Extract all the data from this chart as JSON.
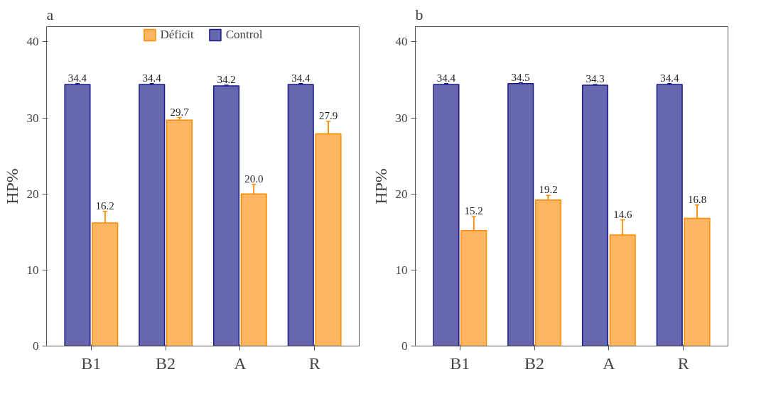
{
  "chart_data": [
    {
      "type": "bar",
      "title": "a",
      "ylabel": "HP%",
      "categories": [
        "B1",
        "B2",
        "A",
        "R"
      ],
      "ylim": [
        0,
        42
      ],
      "yticks": [
        0,
        10,
        20,
        30,
        40
      ],
      "grid": false,
      "legend": "top",
      "series": [
        {
          "name": "Déficit",
          "color": "#ffb662",
          "values": [
            16.2,
            29.7,
            20.0,
            27.9
          ],
          "value_labels": [
            "16.2",
            "29.7",
            "20.0",
            "27.9"
          ],
          "errors": [
            1.5,
            0.35,
            1.25,
            1.65
          ]
        },
        {
          "name": "Control",
          "color": "#6667ae",
          "values": [
            34.4,
            34.4,
            34.2,
            34.4
          ],
          "value_labels": [
            "34.4",
            "34.4",
            "34.2",
            "34.4"
          ],
          "errors": [
            0.1,
            0.1,
            0.1,
            0.1
          ]
        }
      ]
    },
    {
      "type": "bar",
      "title": "b",
      "ylabel": "HP%",
      "categories": [
        "B1",
        "B2",
        "A",
        "R"
      ],
      "ylim": [
        0,
        42
      ],
      "yticks": [
        0,
        10,
        20,
        30,
        40
      ],
      "grid": false,
      "series": [
        {
          "color": "#ffb662",
          "values": [
            15.2,
            19.2,
            14.6,
            16.8
          ],
          "value_labels": [
            "15.2",
            "19.2",
            "14.6",
            "16.8"
          ],
          "errors": [
            1.8,
            0.6,
            2.0,
            1.75
          ]
        },
        {
          "color": "#6667ae",
          "values": [
            34.4,
            34.5,
            34.3,
            34.4
          ],
          "value_labels": [
            "34.4",
            "34.5",
            "34.3",
            "34.4"
          ],
          "errors": [
            0.1,
            0.1,
            0.1,
            0.1
          ]
        }
      ]
    }
  ]
}
